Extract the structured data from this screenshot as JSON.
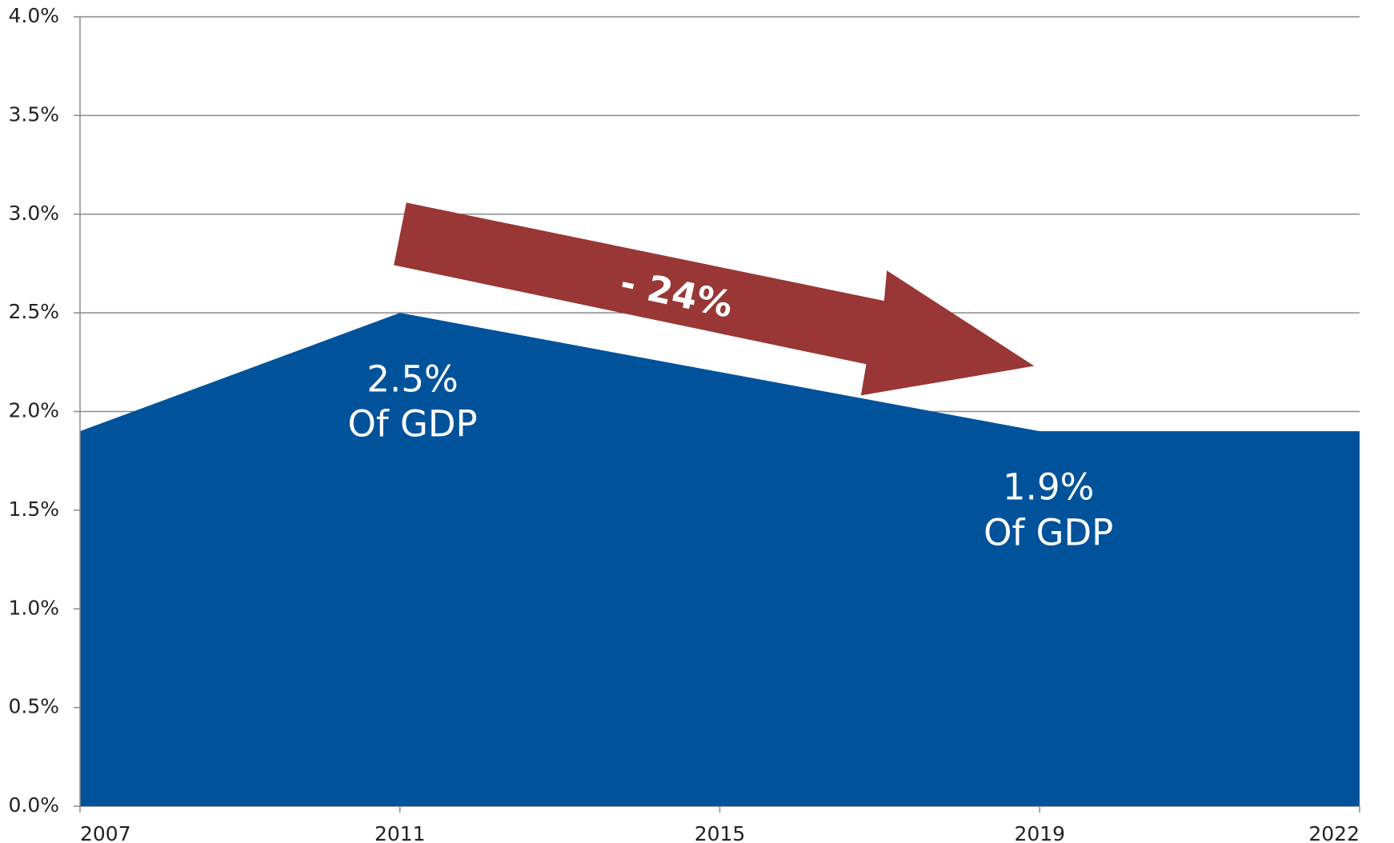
{
  "chart_data": {
    "type": "area",
    "categories": [
      "2007",
      "2011",
      "2015",
      "2019",
      "2022"
    ],
    "values": [
      1.9,
      2.5,
      2.2,
      1.9,
      1.9
    ],
    "color": "#00539b",
    "ylim": [
      0,
      4
    ],
    "yticks": [
      {
        "value": 0,
        "label": "0.0%"
      },
      {
        "value": 0.5,
        "label": "0.5%"
      },
      {
        "value": 1,
        "label": "1.0%"
      },
      {
        "value": 1.5,
        "label": "1.5%"
      },
      {
        "value": 2,
        "label": "2.0%"
      },
      {
        "value": 2.5,
        "label": "2.5%"
      },
      {
        "value": 3,
        "label": "3.0%"
      },
      {
        "value": 3.5,
        "label": "3.5%"
      },
      {
        "value": 4,
        "label": "4.0%"
      }
    ],
    "grid": true,
    "annotations": [
      "2.5%",
      "Of GDP",
      "1.9%",
      "Of GDP",
      "- 24%"
    ],
    "arrow_color": "#983735"
  }
}
